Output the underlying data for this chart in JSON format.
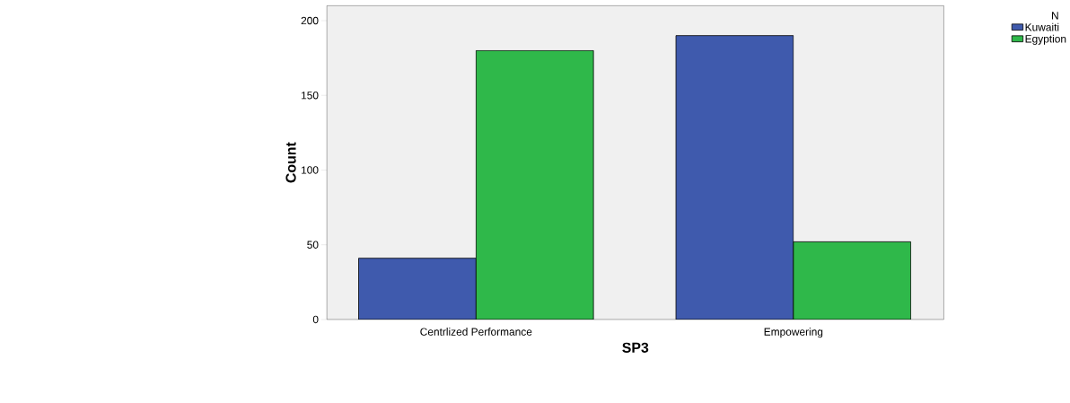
{
  "chart_data": {
    "type": "bar",
    "xlabel": "SP3",
    "ylabel": "Count",
    "legend_title": "N",
    "categories": [
      "Centrlized Performance",
      "Empowering"
    ],
    "series": [
      {
        "name": "Kuwaiti",
        "color": "#3f5aad",
        "values": [
          41,
          190
        ]
      },
      {
        "name": "Egyption",
        "color": "#2fb84a",
        "values": [
          180,
          52
        ]
      }
    ],
    "ylim": [
      0,
      210
    ],
    "yticks": [
      0,
      50,
      100,
      150,
      200
    ],
    "grid": false,
    "legend": "top right"
  }
}
